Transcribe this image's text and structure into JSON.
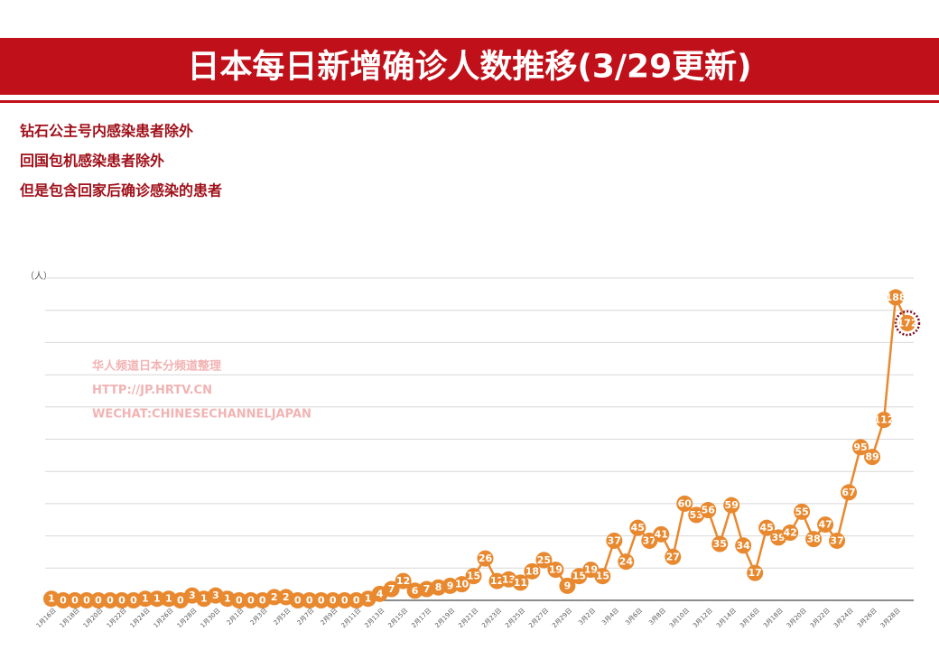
{
  "chart_data": {
    "type": "line",
    "title": "日本每日新增确诊人数推移(3/29更新)",
    "notes": [
      "钻石公主号内感染患者除外",
      "回国包机感染患者除外",
      "但是包含回家后确诊感染的患者"
    ],
    "watermark": [
      "华人频道日本分频道整理",
      "HTTP://JP.HRTV.CN",
      "WECHAT:CHINESECHANNELJAPAN"
    ],
    "y_unit": "（人）",
    "categories": [
      "1月16日",
      null,
      "1月18日",
      null,
      "1月20日",
      null,
      "1月22日",
      null,
      "1月24日",
      null,
      "1月26日",
      null,
      "1月28日",
      null,
      "1月30日",
      null,
      "2月1日",
      null,
      "2月3日",
      null,
      "2月5日",
      null,
      "2月7日",
      null,
      "2月9日",
      null,
      "2月11日",
      null,
      "2月13日",
      null,
      "2月15日",
      null,
      "2月17日",
      null,
      "2月19日",
      null,
      "2月21日",
      null,
      "2月23日",
      null,
      "2月25日",
      null,
      "2月27日",
      null,
      "2月29日",
      null,
      "3月2日",
      null,
      "3月4日",
      null,
      "3月6日",
      null,
      "3月8日",
      null,
      "3月10日",
      null,
      "3月12日",
      null,
      "3月14日",
      null,
      "3月16日",
      null,
      "3月18日",
      null,
      "3月20日",
      null,
      "3月22日",
      null,
      "3月24日",
      null,
      "3月26日",
      null,
      "3月28日",
      null
    ],
    "series": [
      {
        "name": "新增确诊",
        "color": "#e8892f",
        "values": [
          1,
          0,
          0,
          0,
          0,
          0,
          0,
          0,
          1,
          1,
          1,
          0,
          3,
          1,
          3,
          1,
          0,
          0,
          0,
          2,
          2,
          0,
          0,
          0,
          0,
          0,
          0,
          1,
          4,
          7,
          12,
          6,
          7,
          8,
          9,
          10,
          15,
          26,
          12,
          13,
          11,
          18,
          25,
          19,
          9,
          15,
          19,
          15,
          37,
          24,
          45,
          37,
          41,
          27,
          60,
          53,
          56,
          35,
          59,
          34,
          17,
          45,
          39,
          42,
          55,
          38,
          47,
          37,
          67,
          95,
          89,
          112,
          188,
          172
        ]
      }
    ],
    "ylim": [
      0,
      200
    ],
    "grid_lines": [
      0,
      20,
      40,
      60,
      80,
      100,
      120,
      140,
      160,
      180,
      200
    ],
    "highlight_last": true
  }
}
